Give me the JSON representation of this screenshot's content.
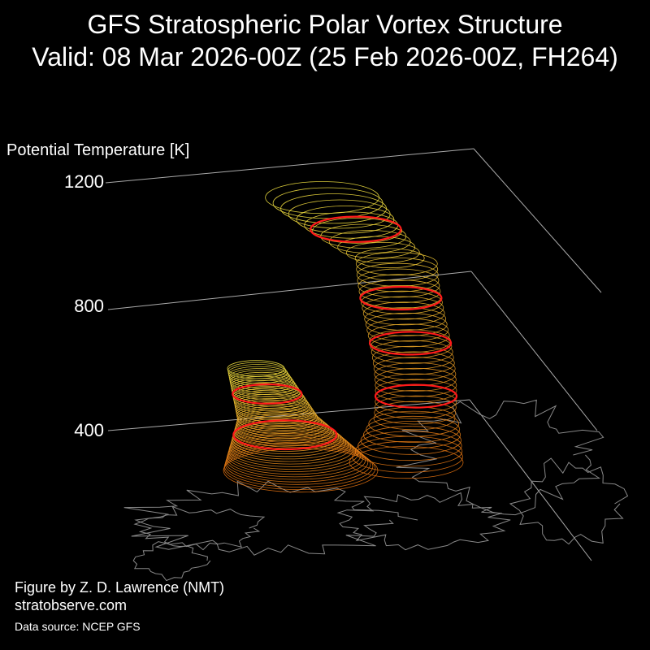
{
  "title_line1": "GFS Stratospheric Polar Vortex Structure",
  "title_line2": "Valid: 08 Mar 2026-00Z  (25 Feb 2026-00Z, FH264)",
  "credit": "Figure by Z. D. Lawrence (NMT)",
  "site": "stratobserve.com",
  "source": "Data source: NCEP GFS",
  "colors": {
    "background": "#000000",
    "axis": "#aaaaaa",
    "vortex_low": "#e07010",
    "vortex_high": "#f0e040",
    "highlight": "#ff1a1a",
    "coastline": "#888888"
  },
  "chart_data": {
    "type": "3d-isosurface",
    "zlabel": "Potential Temperature [K]",
    "zticks": [
      400,
      800,
      1200
    ],
    "zlim": [
      300,
      1300
    ],
    "grid": true,
    "vortex_lobes": [
      {
        "label": "",
        "base_K": 350,
        "top_K": 600
      },
      {
        "label": "",
        "base_K": 350,
        "top_K": 1150
      }
    ]
  }
}
